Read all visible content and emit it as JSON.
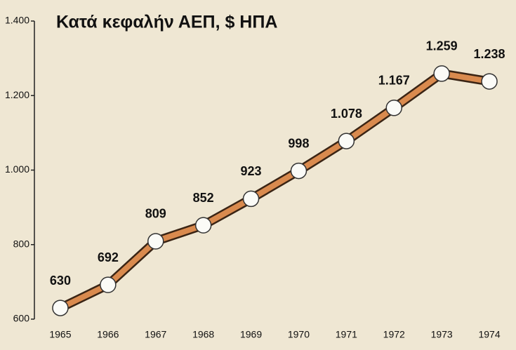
{
  "chart_data": {
    "type": "line",
    "title": "Κατά κεφαλήν ΑΕΠ, $ ΗΠΑ",
    "categories": [
      "1965",
      "1966",
      "1967",
      "1968",
      "1969",
      "1970",
      "1971",
      "1972",
      "1973",
      "1974"
    ],
    "values": [
      630,
      692,
      809,
      852,
      923,
      998,
      1078,
      1167,
      1259,
      1238
    ],
    "value_labels": [
      "630",
      "692",
      "809",
      "852",
      "923",
      "998",
      "1.078",
      "1.167",
      "1.259",
      "1.238"
    ],
    "color": "#d98a4e",
    "ylim": [
      600,
      1400
    ],
    "yticks": [
      600,
      800,
      {
        "value": 1000,
        "label": "1.000"
      },
      {
        "value": 1200,
        "label": "1.200"
      },
      {
        "value": 1400,
        "label": "1.400"
      }
    ]
  }
}
